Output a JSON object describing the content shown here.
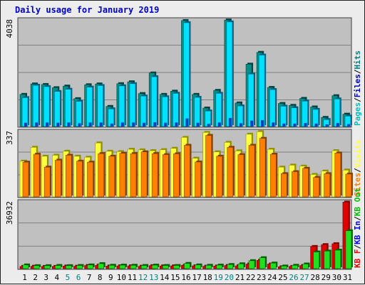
{
  "title": "Daily usage for January 2019",
  "colors": {
    "hits": "#00c0d0",
    "hits_edge": "#008080",
    "files": "#00e0ff",
    "files_edge": "#0000c0",
    "pages": "#00c0c0",
    "visits": "#ffff40",
    "visits_edge": "#909000",
    "sites": "#ff8000",
    "sites_edge": "#804000",
    "kbin": "#00c000",
    "kbout": "#0000ff",
    "kbf": "#e00000",
    "kbf_edge": "#800000",
    "kbin_fill": "#20e020",
    "kbin_edge": "#006000",
    "weekend": "#008080",
    "weekday": "#000000",
    "plot_bg": "#c0c0c0",
    "grid": "#808080"
  },
  "chart_data": [
    {
      "type": "bar",
      "panel": "hits-files-pages",
      "ymax_label": "4038",
      "ylim": [
        0,
        4038
      ],
      "legend": [
        {
          "text": "Pages",
          "color": "#00c0c0"
        },
        {
          "text": "Files",
          "color": "#0000c0"
        },
        {
          "text": "Hits",
          "color": "#008080"
        }
      ],
      "categories": [
        "1",
        "2",
        "3",
        "4",
        "5",
        "6",
        "7",
        "8",
        "9",
        "10",
        "11",
        "12",
        "13",
        "14",
        "15",
        "16",
        "17",
        "18",
        "19",
        "20",
        "21",
        "22",
        "23",
        "24",
        "25",
        "26",
        "27",
        "28",
        "29",
        "30",
        "31"
      ],
      "series": [
        {
          "name": "Hits",
          "values": [
            1200,
            1590,
            1570,
            1450,
            1510,
            1040,
            1560,
            1590,
            750,
            1600,
            1670,
            1230,
            2000,
            1200,
            1320,
            3960,
            1200,
            690,
            1350,
            3980,
            880,
            2330,
            2770,
            1460,
            860,
            790,
            1050,
            730,
            340,
            1150,
            460
          ]
        },
        {
          "name": "Files",
          "values": [
            1080,
            1540,
            1490,
            1310,
            1390,
            940,
            1470,
            1530,
            660,
            1520,
            1600,
            1140,
            1860,
            1110,
            1240,
            3880,
            1090,
            580,
            1240,
            3910,
            770,
            1960,
            2670,
            1380,
            760,
            700,
            950,
            640,
            260,
            1030,
            390
          ]
        },
        {
          "name": "Pages",
          "values": [
            140,
            150,
            150,
            140,
            150,
            120,
            150,
            150,
            110,
            150,
            150,
            140,
            160,
            140,
            150,
            300,
            140,
            100,
            150,
            320,
            120,
            220,
            240,
            150,
            110,
            110,
            130,
            110,
            80,
            130,
            90
          ]
        }
      ]
    },
    {
      "type": "bar",
      "panel": "visits-sites",
      "ymax_label": "337",
      "ylim": [
        0,
        337
      ],
      "legend": [
        {
          "text": "Sites",
          "color": "#ff8000"
        },
        {
          "text": "Visits",
          "color": "#ffff40"
        }
      ],
      "categories": [
        "1",
        "2",
        "3",
        "4",
        "5",
        "6",
        "7",
        "8",
        "9",
        "10",
        "11",
        "12",
        "13",
        "14",
        "15",
        "16",
        "17",
        "18",
        "19",
        "20",
        "21",
        "22",
        "23",
        "24",
        "25",
        "26",
        "27",
        "28",
        "29",
        "30",
        "31"
      ],
      "series": [
        {
          "name": "Visits",
          "values": [
            180,
            250,
            205,
            210,
            230,
            205,
            200,
            272,
            230,
            228,
            240,
            237,
            233,
            238,
            245,
            300,
            195,
            325,
            227,
            275,
            232,
            316,
            329,
            240,
            150,
            160,
            155,
            113,
            130,
            233,
            135
          ]
        },
        {
          "name": "Sites",
          "values": [
            175,
            215,
            150,
            185,
            210,
            180,
            175,
            218,
            205,
            220,
            218,
            227,
            218,
            213,
            217,
            260,
            176,
            310,
            205,
            250,
            213,
            260,
            295,
            215,
            117,
            127,
            144,
            98,
            117,
            221,
            115
          ]
        }
      ]
    },
    {
      "type": "bar",
      "panel": "kb",
      "ymax_label": "36932",
      "ylim": [
        0,
        36932
      ],
      "legend": [
        {
          "text": "KB F",
          "color": "#e00000"
        },
        {
          "text": "/",
          "color": "#000000"
        },
        {
          "text": "KB In",
          "color": "#0000ff"
        },
        {
          "text": "/",
          "color": "#000000"
        },
        {
          "text": "KB Out",
          "color": "#00c000"
        }
      ],
      "categories": [
        "1",
        "2",
        "3",
        "4",
        "5",
        "6",
        "7",
        "8",
        "9",
        "10",
        "11",
        "12",
        "13",
        "14",
        "15",
        "16",
        "17",
        "18",
        "19",
        "20",
        "21",
        "22",
        "23",
        "24",
        "25",
        "26",
        "27",
        "28",
        "29",
        "30",
        "31"
      ],
      "series": [
        {
          "name": "KB F",
          "values": [
            1200,
            1300,
            1200,
            1200,
            1400,
            1300,
            1700,
            1800,
            1400,
            1500,
            1500,
            1300,
            1600,
            1500,
            1500,
            1800,
            1500,
            1300,
            1400,
            1700,
            1500,
            2500,
            4500,
            2500,
            1000,
            1200,
            1700,
            12000,
            13000,
            13500,
            36000
          ]
        },
        {
          "name": "KB Out",
          "values": [
            2000,
            1600,
            1600,
            1700,
            1600,
            1700,
            2000,
            2700,
            1800,
            1900,
            1800,
            1700,
            1900,
            1700,
            1700,
            2800,
            2000,
            1800,
            1900,
            2200,
            2600,
            4300,
            5900,
            3000,
            1400,
            1800,
            2500,
            9000,
            9500,
            10000,
            20500
          ]
        }
      ]
    }
  ]
}
